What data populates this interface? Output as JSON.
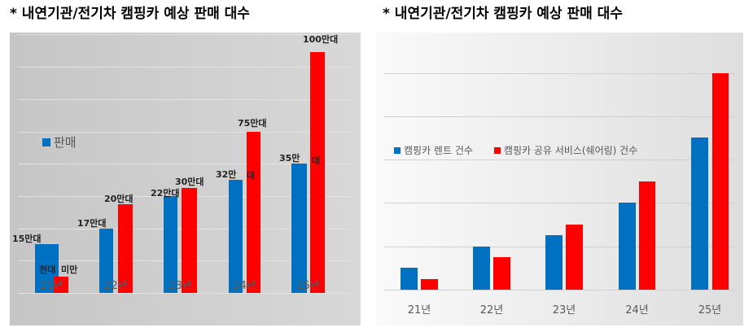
{
  "chart_data": [
    {
      "type": "bar",
      "title": "* 내연기관/전기차 캠핑카 예상 판매 대수",
      "categories": [
        "21년",
        "22년",
        "23년",
        "24년",
        "25년"
      ],
      "legend": [
        {
          "name": "판매",
          "color": "#0070c0"
        }
      ],
      "series": [
        {
          "name": "판매",
          "color": "#0070c0",
          "values": [
            1.5,
            2,
            3,
            3.5,
            4
          ]
        },
        {
          "name": "",
          "color": "#ff0000",
          "values": [
            0.5,
            2.75,
            3.25,
            5,
            7.45
          ]
        }
      ],
      "ylim": [
        0,
        8
      ],
      "grid": true,
      "annotations": [
        "15만대",
        "천대",
        "미만",
        "17만대",
        "20만대",
        "22만대",
        "30만대",
        "32만",
        "대",
        "75만대",
        "35만",
        "대",
        "100만대"
      ]
    },
    {
      "type": "bar",
      "title": "* 내연기관/전기차 캠핑카 예상 판매 대수",
      "categories": [
        "21년",
        "22년",
        "23년",
        "24년",
        "25년"
      ],
      "legend": [
        {
          "name": "캠핑카 렌트 건수",
          "color": "#0070c0"
        },
        {
          "name": "캠핑카 공유 서비스(쉐어링) 건수",
          "color": "#ff0000"
        }
      ],
      "series": [
        {
          "name": "캠핑카 렌트 건수",
          "color": "#0070c0",
          "values": [
            0.5,
            1,
            1.25,
            2,
            3.5
          ]
        },
        {
          "name": "캠핑카 공유 서비스(쉐어링) 건수",
          "color": "#ff0000",
          "values": [
            0.25,
            0.75,
            1.5,
            2.5,
            5
          ]
        }
      ],
      "ylim": [
        0,
        5
      ],
      "grid": true
    }
  ]
}
